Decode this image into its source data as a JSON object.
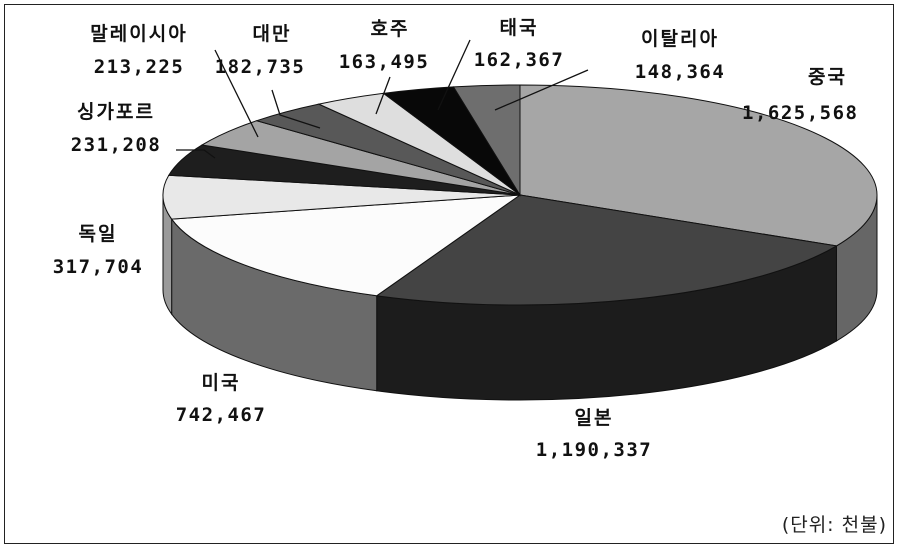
{
  "chart_data": {
    "type": "pie",
    "unit_label": "(단위: 천불)",
    "slices": [
      {
        "name": "중국",
        "value": 1625568,
        "value_label": "1,625,568",
        "color": "#a6a6a6",
        "side": "#666666"
      },
      {
        "name": "일본",
        "value": 1190337,
        "value_label": "1,190,337",
        "color": "#444444",
        "side": "#1c1c1c"
      },
      {
        "name": "미국",
        "value": 742467,
        "value_label": "742,467",
        "color": "#fcfcfc",
        "side": "#6a6a6a"
      },
      {
        "name": "독일",
        "value": 317704,
        "value_label": "317,704",
        "color": "#e8e8e8",
        "side": "#9a9a9a"
      },
      {
        "name": "싱가포르",
        "value": 231208,
        "value_label": "231,208",
        "color": "#1e1e1e",
        "side": "#0a0a0a"
      },
      {
        "name": "말레이시아",
        "value": 213225,
        "value_label": "213,225",
        "color": "#a4a4a4",
        "side": "#555555"
      },
      {
        "name": "대만",
        "value": 182735,
        "value_label": "182,735",
        "color": "#585858",
        "side": "#2a2a2a"
      },
      {
        "name": "호주",
        "value": 163495,
        "value_label": "163,495",
        "color": "#dedede",
        "side": "#8a8a8a"
      },
      {
        "name": "태국",
        "value": 162367,
        "value_label": "162,367",
        "color": "#080808",
        "side": "#000000"
      },
      {
        "name": "이탈리아",
        "value": 148364,
        "value_label": "148,364",
        "color": "#6e6e6e",
        "side": "#3a3a3a"
      }
    ]
  }
}
